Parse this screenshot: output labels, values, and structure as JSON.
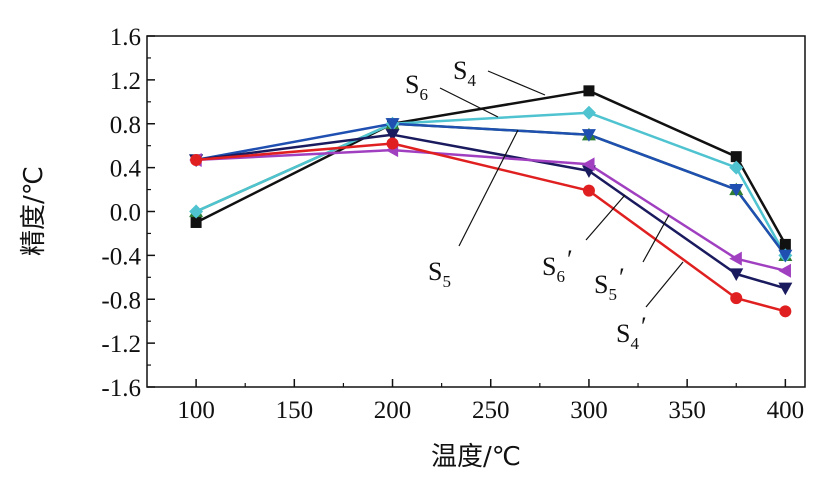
{
  "chart_data": {
    "type": "line",
    "xlabel": "温度/℃",
    "ylabel": "精度/℃",
    "xlim": [
      75,
      410
    ],
    "ylim": [
      -1.6,
      1.6
    ],
    "x_ticks": [
      "100",
      "150",
      "200",
      "250",
      "300",
      "350",
      "400"
    ],
    "y_ticks": [
      "1.6",
      "1.2",
      "0.8",
      "0.4",
      "0.0",
      "-0.4",
      "-0.8",
      "-1.2",
      "-1.6"
    ],
    "x": [
      100,
      200,
      300,
      375,
      400
    ],
    "series": [
      {
        "name": "S4",
        "label_main": "S",
        "label_sub": "4",
        "label_prime": "",
        "color": "#111111",
        "marker": "square",
        "values": [
          -0.1,
          0.8,
          1.1,
          0.5,
          -0.3
        ]
      },
      {
        "name": "S6",
        "label_main": "S",
        "label_sub": "6",
        "label_prime": "",
        "color": "#2e7d32",
        "marker": "triangle-up",
        "values": [
          0.0,
          0.8,
          0.7,
          0.2,
          -0.4
        ]
      },
      {
        "name": "",
        "label_main": "",
        "label_sub": "",
        "label_prime": "",
        "color": "#4fc3d0",
        "marker": "diamond",
        "values": [
          0.0,
          0.8,
          0.9,
          0.4,
          -0.4
        ]
      },
      {
        "name": "S5",
        "label_main": "S",
        "label_sub": "5",
        "label_prime": "",
        "color": "#1f4fb0",
        "marker": "triangle-down",
        "values": [
          0.47,
          0.8,
          0.7,
          0.2,
          -0.4
        ]
      },
      {
        "name": "S6′",
        "label_main": "S",
        "label_sub": "6",
        "label_prime": "′",
        "color": "#1a1a5e",
        "marker": "triangle-down",
        "values": [
          0.47,
          0.7,
          0.37,
          -0.57,
          -0.7
        ]
      },
      {
        "name": "S5′",
        "label_main": "S",
        "label_sub": "5",
        "label_prime": "′",
        "color": "#a040c0",
        "marker": "triangle-left",
        "values": [
          0.47,
          0.56,
          0.43,
          -0.43,
          -0.54
        ]
      },
      {
        "name": "S4′",
        "label_main": "S",
        "label_sub": "4",
        "label_prime": "′",
        "color": "#e02020",
        "marker": "circle",
        "values": [
          0.47,
          0.62,
          0.19,
          -0.79,
          -0.91
        ]
      }
    ],
    "legend": "inline-annotations"
  }
}
